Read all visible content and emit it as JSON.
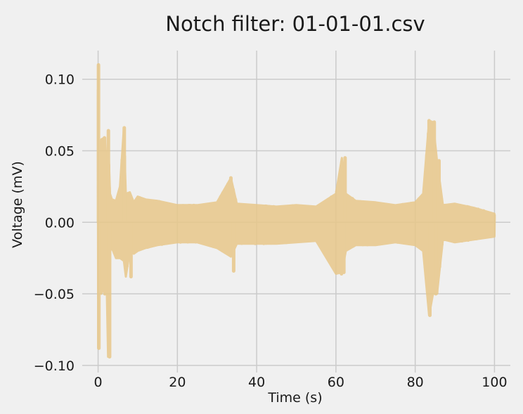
{
  "chart_data": {
    "type": "line",
    "title": "Notch filter: 01-01-01.csv",
    "xlabel": "Time (s)",
    "ylabel": "Voltage (mV)",
    "xlim": [
      -4,
      104
    ],
    "ylim": [
      -0.105,
      0.12
    ],
    "grid": true,
    "x_ticks": [
      0,
      20,
      40,
      60,
      80,
      100
    ],
    "x_tick_labels": [
      "0",
      "20",
      "40",
      "60",
      "80",
      "100"
    ],
    "y_ticks": [
      -0.1,
      -0.05,
      0.0,
      0.05,
      0.1
    ],
    "y_tick_labels": [
      "−0.10",
      "−0.05",
      "0.00",
      "0.05",
      "0.10"
    ],
    "series": [
      {
        "color": "#e8c88a",
        "opacity": 0.85,
        "envelope": {
          "x": [
            0,
            0.3,
            0.8,
            1.5,
            2.0,
            2.5,
            3.0,
            3.5,
            4.5,
            5.5,
            6.5,
            7.0,
            8.0,
            9.0,
            10,
            12,
            15,
            20,
            25,
            30,
            33.5,
            35,
            40,
            45,
            50,
            55,
            60,
            61.5,
            62.5,
            65,
            70,
            75,
            80,
            82,
            83.5,
            84.5,
            85.5,
            87,
            90,
            95,
            100
          ],
          "upper": [
            0.11,
            0.03,
            0.058,
            0.059,
            0.03,
            0.064,
            0.02,
            0.016,
            0.015,
            0.025,
            0.066,
            0.02,
            0.021,
            0.014,
            0.018,
            0.016,
            0.015,
            0.012,
            0.012,
            0.014,
            0.031,
            0.013,
            0.012,
            0.011,
            0.012,
            0.011,
            0.02,
            0.045,
            0.02,
            0.015,
            0.014,
            0.012,
            0.014,
            0.02,
            0.071,
            0.07,
            0.043,
            0.012,
            0.013,
            0.01,
            0.006
          ],
          "lower": [
            -0.088,
            -0.045,
            -0.05,
            -0.045,
            -0.02,
            -0.094,
            -0.02,
            -0.018,
            -0.025,
            -0.025,
            -0.027,
            -0.038,
            -0.02,
            -0.022,
            -0.02,
            -0.018,
            -0.016,
            -0.014,
            -0.014,
            -0.018,
            -0.024,
            -0.015,
            -0.015,
            -0.015,
            -0.014,
            -0.013,
            -0.036,
            -0.035,
            -0.02,
            -0.016,
            -0.016,
            -0.014,
            -0.016,
            -0.02,
            -0.065,
            -0.05,
            -0.05,
            -0.012,
            -0.014,
            -0.012,
            -0.01
          ]
        },
        "spikes": [
          {
            "x": 0.1,
            "y": 0.11
          },
          {
            "x": 0.2,
            "y": -0.088
          },
          {
            "x": 1.6,
            "y": 0.059
          },
          {
            "x": 1.7,
            "y": -0.05
          },
          {
            "x": 2.6,
            "y": 0.064
          },
          {
            "x": 2.9,
            "y": -0.094
          },
          {
            "x": 6.6,
            "y": 0.066
          },
          {
            "x": 8.3,
            "y": -0.038
          },
          {
            "x": 33.5,
            "y": 0.031
          },
          {
            "x": 34.2,
            "y": -0.034
          },
          {
            "x": 61.4,
            "y": -0.036
          },
          {
            "x": 62.3,
            "y": 0.045
          },
          {
            "x": 62.0,
            "y": -0.035
          },
          {
            "x": 83.5,
            "y": 0.071
          },
          {
            "x": 83.7,
            "y": -0.065
          },
          {
            "x": 84.8,
            "y": 0.07
          },
          {
            "x": 85.2,
            "y": -0.05
          },
          {
            "x": 86.0,
            "y": 0.043
          }
        ]
      }
    ]
  }
}
